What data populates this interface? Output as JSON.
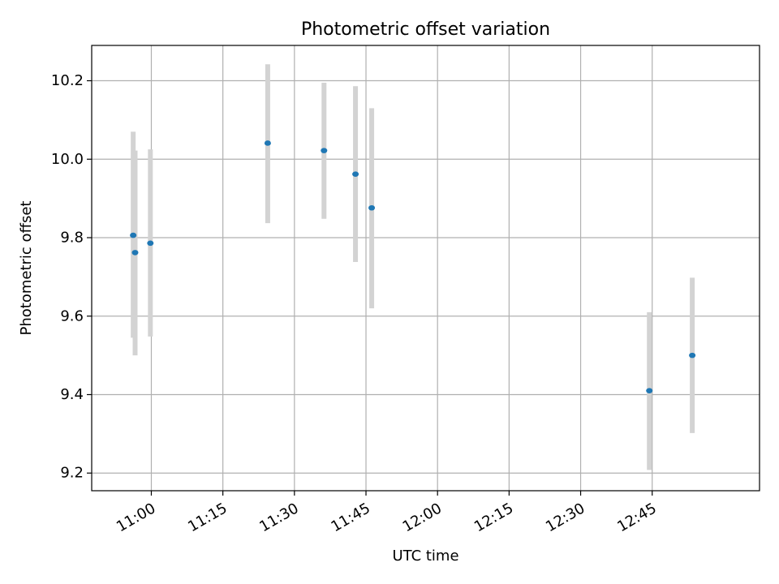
{
  "chart_data": {
    "type": "scatter",
    "title": "Photometric offset variation",
    "xlabel": "UTC time",
    "ylabel": "Photometric offset",
    "xlim": [
      "10:47:30",
      "13:07:30"
    ],
    "ylim": [
      9.155,
      10.29
    ],
    "grid": true,
    "x_ticks": [
      "11:00",
      "11:15",
      "11:30",
      "11:45",
      "12:00",
      "12:15",
      "12:30",
      "12:45"
    ],
    "y_ticks": [
      "9.2",
      "9.4",
      "9.6",
      "9.8",
      "10.0",
      "10.2"
    ],
    "points": [
      {
        "x": "10:56:12",
        "y": 9.806,
        "err_low": 9.545,
        "err_high": 10.07
      },
      {
        "x": "10:56:36",
        "y": 9.762,
        "err_low": 9.5,
        "err_high": 10.022
      },
      {
        "x": "10:59:48",
        "y": 9.786,
        "err_low": 9.548,
        "err_high": 10.025
      },
      {
        "x": "11:24:24",
        "y": 10.041,
        "err_low": 9.837,
        "err_high": 10.242
      },
      {
        "x": "11:36:12",
        "y": 10.022,
        "err_low": 9.848,
        "err_high": 10.195
      },
      {
        "x": "11:42:48",
        "y": 9.962,
        "err_low": 9.738,
        "err_high": 10.186
      },
      {
        "x": "11:46:12",
        "y": 9.876,
        "err_low": 9.62,
        "err_high": 10.13
      },
      {
        "x": "12:44:24",
        "y": 9.41,
        "err_low": 9.208,
        "err_high": 9.61
      },
      {
        "x": "12:53:24",
        "y": 9.5,
        "err_low": 9.302,
        "err_high": 9.698
      }
    ],
    "colors": {
      "point": "#1f77b4",
      "errorbar": "#d3d3d3",
      "grid": "#b0b0b0"
    }
  }
}
